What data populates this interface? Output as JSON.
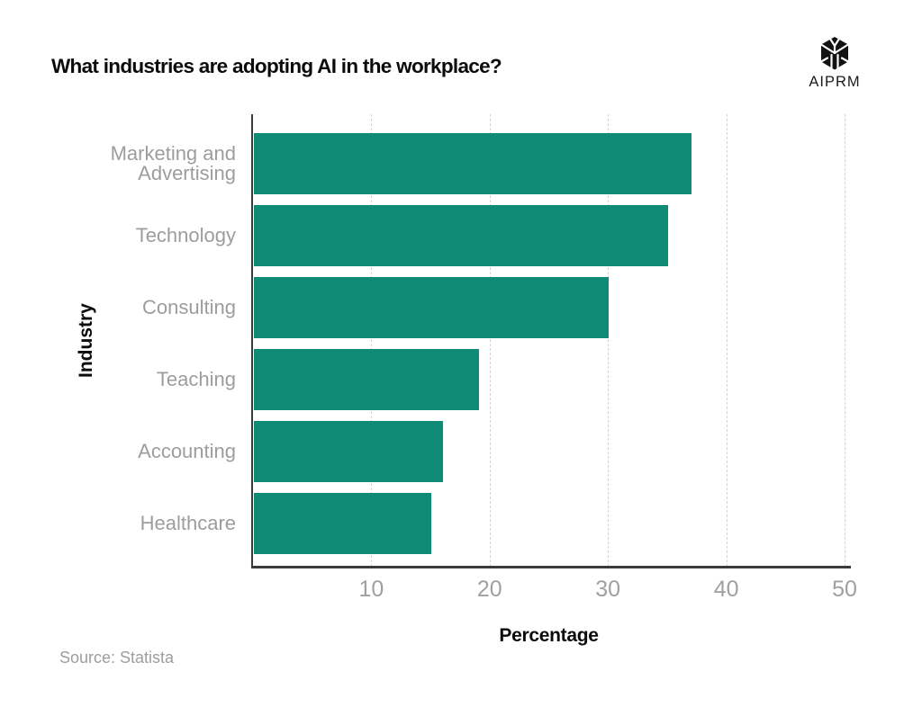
{
  "header": {
    "brand": "AIPRM",
    "logo_icon": "aiprm-faceted-hexagon-logo-icon"
  },
  "footer": {
    "source": "Source: Statista"
  },
  "chart_data": {
    "type": "bar",
    "orientation": "horizontal",
    "title": "What industries are adopting AI in the workplace?",
    "categories": [
      "Marketing and Advertising",
      "Technology",
      "Consulting",
      "Teaching",
      "Accounting",
      "Healthcare"
    ],
    "values": [
      37,
      35,
      30,
      19,
      16,
      15
    ],
    "xlabel": "Percentage",
    "ylabel": "Industry",
    "xlim": [
      0,
      50
    ],
    "xticks": [
      10,
      20,
      30,
      40,
      50
    ],
    "grid": "vertical-dashed",
    "legend": "none",
    "colors": {
      "bar": "#0e8a75",
      "axis_line": "#3b3b3b",
      "gridline": "#d4d4d4",
      "tick_label": "#a0a0a0",
      "category_label": "#9d9d9d",
      "title": "#0b0b0b"
    }
  }
}
